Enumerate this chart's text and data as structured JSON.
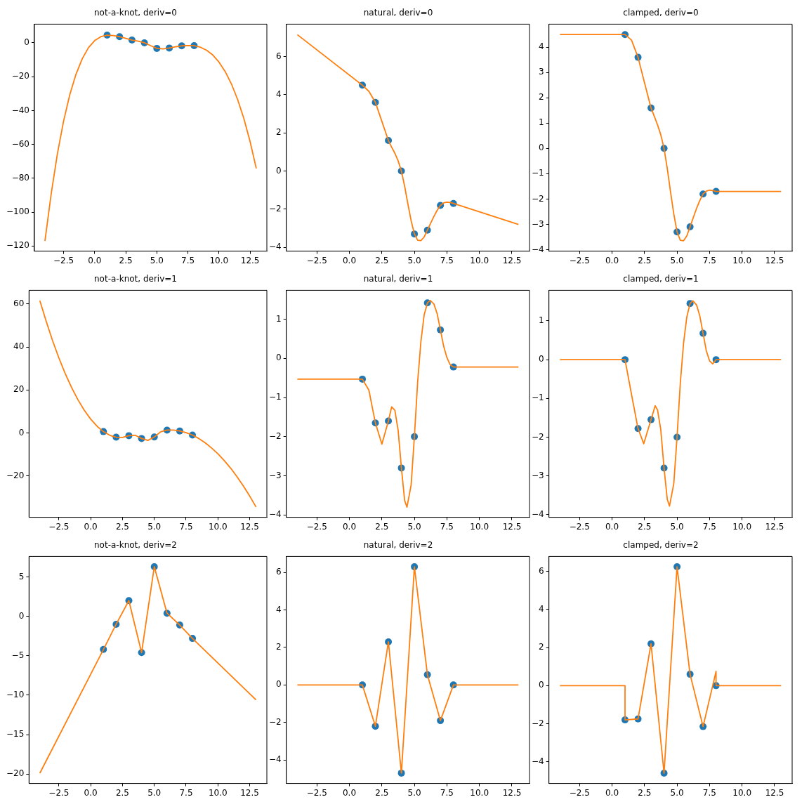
{
  "chart_data": [
    {
      "type": "line",
      "title": "not-a-knot, deriv=0",
      "xlim": [
        -4.85,
        13.85
      ],
      "xticks": [
        {
          "value": -2.5,
          "label": "−2.5"
        },
        {
          "value": 0,
          "label": "0.0"
        },
        2.5,
        {
          "value": 5,
          "label": "5.0"
        },
        7.5,
        {
          "value": 10,
          "label": "10.0"
        },
        12.5
      ],
      "ylim": [
        -123,
        11
      ],
      "yticks": [
        {
          "value": -120,
          "label": "−120"
        },
        {
          "value": -100,
          "label": "−100"
        },
        {
          "value": -80,
          "label": "−80"
        },
        {
          "value": -60,
          "label": "−60"
        },
        {
          "value": -40,
          "label": "−40"
        },
        {
          "value": -20,
          "label": "−20"
        },
        0
      ],
      "series": [
        {
          "type": "scatter",
          "marker": "circle",
          "color": "#1f77b4",
          "x": [
            1,
            2,
            3,
            4,
            5,
            6,
            7,
            8
          ],
          "values": [
            4.5,
            3.6,
            1.6,
            0,
            -3.3,
            -3.1,
            -1.8,
            -1.7
          ]
        },
        {
          "type": "line",
          "marker": "none",
          "color": "#ff7f0e",
          "x": [
            -4,
            -3.5,
            -3,
            -2.5,
            -2,
            -1.5,
            -1,
            -0.5,
            0,
            0.5,
            1,
            1.5,
            2,
            2.5,
            3,
            3.5,
            4,
            4.5,
            5,
            5.5,
            6,
            6.5,
            7,
            7.5,
            8,
            8.5,
            9,
            9.5,
            10,
            10.5,
            11,
            11.5,
            12,
            12.5,
            13
          ],
          "values": [
            -117,
            -89.3,
            -65.6,
            -46.2,
            -30.6,
            -18.5,
            -9.4,
            -2.9,
            1.3,
            3.6,
            4.5,
            4.3,
            3.6,
            2.6,
            1.6,
            1,
            0,
            -1.7,
            -3.3,
            -3.6,
            -3.1,
            -2.4,
            -1.8,
            -1.6,
            -1.7,
            -2.6,
            -4.4,
            -7.2,
            -11.4,
            -17,
            -24.3,
            -33.5,
            -44.7,
            -58.3,
            -74.2
          ]
        }
      ]
    },
    {
      "type": "line",
      "title": "natural, deriv=0",
      "xlim": [
        -4.85,
        13.85
      ],
      "xticks": [
        {
          "value": -2.5,
          "label": "−2.5"
        },
        {
          "value": 0,
          "label": "0.0"
        },
        2.5,
        {
          "value": 5,
          "label": "5.0"
        },
        7.5,
        {
          "value": 10,
          "label": "10.0"
        },
        12.5
      ],
      "ylim": [
        -4.2,
        7.7
      ],
      "yticks": [
        {
          "value": -4,
          "label": "−4"
        },
        {
          "value": -2,
          "label": "−2"
        },
        0,
        2,
        4,
        6
      ],
      "series": [
        {
          "type": "scatter",
          "marker": "circle",
          "color": "#1f77b4",
          "x": [
            1,
            2,
            3,
            4,
            5,
            6,
            7,
            8
          ],
          "values": [
            4.5,
            3.6,
            1.6,
            0,
            -3.3,
            -3.1,
            -1.8,
            -1.7
          ]
        },
        {
          "type": "line",
          "marker": "none",
          "color": "#ff7f0e",
          "x": [
            -4,
            1,
            1.5,
            2,
            2.5,
            3,
            3.25,
            3.5,
            3.75,
            4,
            4.25,
            4.5,
            4.75,
            5,
            5.25,
            5.5,
            5.75,
            6,
            6.25,
            6.5,
            6.75,
            7,
            7.25,
            7.5,
            7.75,
            8,
            13
          ],
          "values": [
            7.15,
            4.5,
            4.18,
            3.6,
            2.6,
            1.6,
            1.25,
            0.93,
            0.53,
            0,
            -0.8,
            -1.73,
            -2.61,
            -3.3,
            -3.63,
            -3.65,
            -3.46,
            -3.1,
            -2.74,
            -2.38,
            -2.06,
            -1.8,
            -1.67,
            -1.63,
            -1.65,
            -1.7,
            -2.8
          ]
        }
      ]
    },
    {
      "type": "line",
      "title": "clamped, deriv=0",
      "xlim": [
        -4.85,
        13.85
      ],
      "xticks": [
        {
          "value": -2.5,
          "label": "−2.5"
        },
        {
          "value": 0,
          "label": "0.0"
        },
        2.5,
        {
          "value": 5,
          "label": "5.0"
        },
        7.5,
        {
          "value": 10,
          "label": "10.0"
        },
        12.5
      ],
      "ylim": [
        -4.06,
        4.91
      ],
      "yticks": [
        {
          "value": -4,
          "label": "−4"
        },
        {
          "value": -3,
          "label": "−3"
        },
        {
          "value": -2,
          "label": "−2"
        },
        {
          "value": -1,
          "label": "−1"
        },
        0,
        1,
        2,
        3,
        4
      ],
      "series": [
        {
          "type": "scatter",
          "marker": "circle",
          "color": "#1f77b4",
          "x": [
            1,
            2,
            3,
            4,
            5,
            6,
            7,
            8
          ],
          "values": [
            4.5,
            3.6,
            1.6,
            0,
            -3.3,
            -3.1,
            -1.8,
            -1.7
          ]
        },
        {
          "type": "line",
          "marker": "none",
          "color": "#ff7f0e",
          "x": [
            -4,
            1,
            1.5,
            2,
            2.5,
            3,
            3.25,
            3.5,
            3.75,
            4,
            4.25,
            4.5,
            4.75,
            5,
            5.25,
            5.5,
            5.75,
            6,
            6.25,
            6.5,
            6.75,
            7,
            7.25,
            7.5,
            7.75,
            8,
            13
          ],
          "values": [
            4.5,
            4.5,
            4.28,
            3.6,
            2.59,
            1.6,
            1.27,
            0.93,
            0.54,
            0,
            -0.8,
            -1.72,
            -2.59,
            -3.3,
            -3.63,
            -3.65,
            -3.46,
            -3.1,
            -2.73,
            -2.37,
            -2.06,
            -1.8,
            -1.69,
            -1.65,
            -1.67,
            -1.7,
            -1.7
          ]
        }
      ]
    },
    {
      "type": "line",
      "title": "not-a-knot, deriv=1",
      "xlim": [
        -4.85,
        13.85
      ],
      "xticks": [
        {
          "value": -2.5,
          "label": "−2.5"
        },
        {
          "value": 0,
          "label": "0.0"
        },
        2.5,
        {
          "value": 5,
          "label": "5.0"
        },
        7.5,
        {
          "value": 10,
          "label": "10.0"
        },
        12.5
      ],
      "ylim": [
        -39.3,
        66.4
      ],
      "yticks": [
        {
          "value": -20,
          "label": "−20"
        },
        0,
        20,
        40,
        60
      ],
      "series": [
        {
          "type": "scatter",
          "marker": "circle",
          "color": "#1f77b4",
          "x": [
            1,
            2,
            3,
            4,
            5,
            6,
            7,
            8
          ],
          "values": [
            0.6,
            -2,
            -1.3,
            -2.6,
            -1.9,
            1.3,
            0.9,
            -1
          ]
        },
        {
          "type": "line",
          "marker": "none",
          "color": "#ff7f0e",
          "x": [
            -4,
            -3.5,
            -3,
            -2.5,
            -2,
            -1.5,
            -1,
            -0.5,
            0,
            0.5,
            1,
            1.5,
            2,
            2.5,
            3,
            3.5,
            4,
            4.5,
            5,
            5.5,
            6,
            6.5,
            7,
            7.5,
            8,
            8.5,
            9,
            9.5,
            10,
            10.5,
            11,
            11.5,
            12,
            12.5,
            13
          ],
          "values": [
            61.6,
            52,
            43,
            34.9,
            27.6,
            21.1,
            15.4,
            10.5,
            6.4,
            3.1,
            0.6,
            -1.1,
            -2,
            -2.1,
            -1.3,
            -1.1,
            -2.6,
            -3.5,
            -1.9,
            0.5,
            1.3,
            1.3,
            0.9,
            0.1,
            -1,
            -2.6,
            -4.6,
            -7,
            -9.7,
            -12.9,
            -16.4,
            -20.4,
            -24.7,
            -29.4,
            -34.5
          ]
        }
      ]
    },
    {
      "type": "line",
      "title": "natural, deriv=1",
      "xlim": [
        -4.85,
        13.85
      ],
      "xticks": [
        {
          "value": -2.5,
          "label": "−2.5"
        },
        {
          "value": 0,
          "label": "0.0"
        },
        2.5,
        {
          "value": 5,
          "label": "5.0"
        },
        7.5,
        {
          "value": 10,
          "label": "10.0"
        },
        12.5
      ],
      "ylim": [
        -4.06,
        1.74
      ],
      "yticks": [
        {
          "value": -4,
          "label": "−4"
        },
        {
          "value": -3,
          "label": "−3"
        },
        {
          "value": -2,
          "label": "−2"
        },
        {
          "value": -1,
          "label": "−1"
        },
        0,
        1
      ],
      "series": [
        {
          "type": "scatter",
          "marker": "circle",
          "color": "#1f77b4",
          "x": [
            1,
            2,
            3,
            4,
            5,
            6,
            7,
            8
          ],
          "values": [
            -0.53,
            -1.65,
            -1.6,
            -2.8,
            -2,
            1.42,
            0.73,
            -0.22
          ]
        },
        {
          "type": "line",
          "marker": "none",
          "color": "#ff7f0e",
          "x": [
            -4,
            1,
            1.5,
            2,
            2.5,
            3,
            3.25,
            3.5,
            3.75,
            4,
            4.25,
            4.43,
            4.75,
            5,
            5.25,
            5.5,
            5.75,
            6,
            6.22,
            6.5,
            6.75,
            7,
            7.25,
            7.5,
            7.75,
            8,
            13
          ],
          "values": [
            -0.53,
            -0.53,
            -0.81,
            -1.65,
            -2.19,
            -1.6,
            -1.24,
            -1.33,
            -1.84,
            -2.8,
            -3.63,
            -3.8,
            -3.23,
            -2,
            -0.6,
            0.43,
            1.11,
            1.42,
            1.48,
            1.39,
            1.14,
            0.73,
            0.31,
            0.02,
            -0.16,
            -0.22,
            -0.22
          ]
        }
      ]
    },
    {
      "type": "line",
      "title": "clamped, deriv=1",
      "xlim": [
        -4.85,
        13.85
      ],
      "xticks": [
        {
          "value": -2.5,
          "label": "−2.5"
        },
        {
          "value": 0,
          "label": "0.0"
        },
        2.5,
        {
          "value": 5,
          "label": "5.0"
        },
        7.5,
        {
          "value": 10,
          "label": "10.0"
        },
        12.5
      ],
      "ylim": [
        -4.07,
        1.79
      ],
      "yticks": [
        {
          "value": -4,
          "label": "−4"
        },
        {
          "value": -3,
          "label": "−3"
        },
        {
          "value": -2,
          "label": "−2"
        },
        {
          "value": -1,
          "label": "−1"
        },
        0,
        1
      ],
      "series": [
        {
          "type": "scatter",
          "marker": "circle",
          "color": "#1f77b4",
          "x": [
            1,
            2,
            3,
            4,
            5,
            6,
            7,
            8
          ],
          "values": [
            0,
            -1.78,
            -1.55,
            -2.8,
            -2,
            1.45,
            0.68,
            0
          ]
        },
        {
          "type": "line",
          "marker": "none",
          "color": "#ff7f0e",
          "x": [
            -4,
            1,
            1.5,
            2,
            2.44,
            3,
            3.32,
            3.5,
            3.75,
            4,
            4.25,
            4.42,
            4.75,
            5,
            5.25,
            5.5,
            5.75,
            6,
            6.22,
            6.5,
            6.75,
            7,
            7.25,
            7.5,
            7.74,
            8,
            13
          ],
          "values": [
            0,
            0,
            -0.9,
            -1.78,
            -2.17,
            -1.55,
            -1.19,
            -1.3,
            -1.81,
            -2.8,
            -3.61,
            -3.78,
            -3.2,
            -2,
            -0.61,
            0.42,
            1.1,
            1.45,
            1.52,
            1.41,
            1.13,
            0.68,
            0.23,
            -0.03,
            -0.11,
            0,
            0
          ]
        }
      ]
    },
    {
      "type": "line",
      "title": "not-a-knot, deriv=2",
      "xlim": [
        -4.85,
        13.85
      ],
      "xticks": [
        {
          "value": -2.5,
          "label": "−2.5"
        },
        {
          "value": 0,
          "label": "0.0"
        },
        2.5,
        {
          "value": 5,
          "label": "5.0"
        },
        7.5,
        {
          "value": 10,
          "label": "10.0"
        },
        12.5
      ],
      "ylim": [
        -21.2,
        7.6
      ],
      "yticks": [
        {
          "value": -20,
          "label": "−20"
        },
        {
          "value": -15,
          "label": "−15"
        },
        {
          "value": -10,
          "label": "−10"
        },
        {
          "value": -5,
          "label": "−5"
        },
        0,
        5
      ],
      "series": [
        {
          "type": "scatter",
          "marker": "circle",
          "color": "#1f77b4",
          "x": [
            1,
            2,
            3,
            4,
            5,
            6,
            7,
            8
          ],
          "values": [
            -4.2,
            -1,
            2,
            -4.6,
            6.3,
            0.4,
            -1.1,
            -2.8
          ]
        },
        {
          "type": "line",
          "marker": "none",
          "color": "#ff7f0e",
          "x": [
            -4,
            1,
            2,
            3,
            4,
            5,
            6,
            7,
            8,
            13
          ],
          "values": [
            -19.9,
            -4.2,
            -1,
            2,
            -4.6,
            6.3,
            0.4,
            -1.1,
            -2.8,
            -10.6
          ]
        }
      ]
    },
    {
      "type": "line",
      "title": "natural, deriv=2",
      "xlim": [
        -4.85,
        13.85
      ],
      "xticks": [
        {
          "value": -2.5,
          "label": "−2.5"
        },
        {
          "value": 0,
          "label": "0.0"
        },
        2.5,
        {
          "value": 5,
          "label": "5.0"
        },
        7.5,
        {
          "value": 10,
          "label": "10.0"
        },
        12.5
      ],
      "ylim": [
        -5.25,
        6.85
      ],
      "yticks": [
        {
          "value": -4,
          "label": "−4"
        },
        {
          "value": -2,
          "label": "−2"
        },
        0,
        2,
        4,
        6
      ],
      "series": [
        {
          "type": "scatter",
          "marker": "circle",
          "color": "#1f77b4",
          "x": [
            1,
            2,
            3,
            4,
            5,
            6,
            7,
            8
          ],
          "values": [
            0,
            -2.2,
            2.3,
            -4.7,
            6.3,
            0.55,
            -1.9,
            0
          ]
        },
        {
          "type": "line",
          "marker": "none",
          "color": "#ff7f0e",
          "x": [
            -4,
            1,
            2,
            3,
            4,
            5,
            6,
            7,
            8,
            13
          ],
          "values": [
            0,
            0,
            -2.2,
            2.3,
            -4.7,
            6.3,
            0.55,
            -1.9,
            0,
            0
          ]
        }
      ]
    },
    {
      "type": "line",
      "title": "clamped, deriv=2",
      "xlim": [
        -4.85,
        13.85
      ],
      "xticks": [
        {
          "value": -2.5,
          "label": "−2.5"
        },
        {
          "value": 0,
          "label": "0.0"
        },
        2.5,
        {
          "value": 5,
          "label": "5.0"
        },
        7.5,
        {
          "value": 10,
          "label": "10.0"
        },
        12.5
      ],
      "ylim": [
        -5.14,
        6.79
      ],
      "yticks": [
        {
          "value": -4,
          "label": "−4"
        },
        {
          "value": -2,
          "label": "−2"
        },
        0,
        2,
        4,
        6
      ],
      "series": [
        {
          "type": "scatter",
          "marker": "circle",
          "color": "#1f77b4",
          "x": [
            1,
            2,
            3,
            4,
            5,
            6,
            7,
            8
          ],
          "values": [
            -1.8,
            -1.75,
            2.2,
            -4.6,
            6.25,
            0.6,
            -2.15,
            0
          ]
        },
        {
          "type": "line",
          "marker": "none",
          "color": "#ff7f0e",
          "x": [
            -4,
            1,
            1,
            2,
            3,
            4,
            5,
            6,
            7,
            8,
            8,
            13
          ],
          "values": [
            0,
            0,
            -1.8,
            -1.75,
            2.2,
            -4.6,
            6.25,
            0.6,
            -2.15,
            0.75,
            0,
            0
          ]
        }
      ]
    }
  ]
}
